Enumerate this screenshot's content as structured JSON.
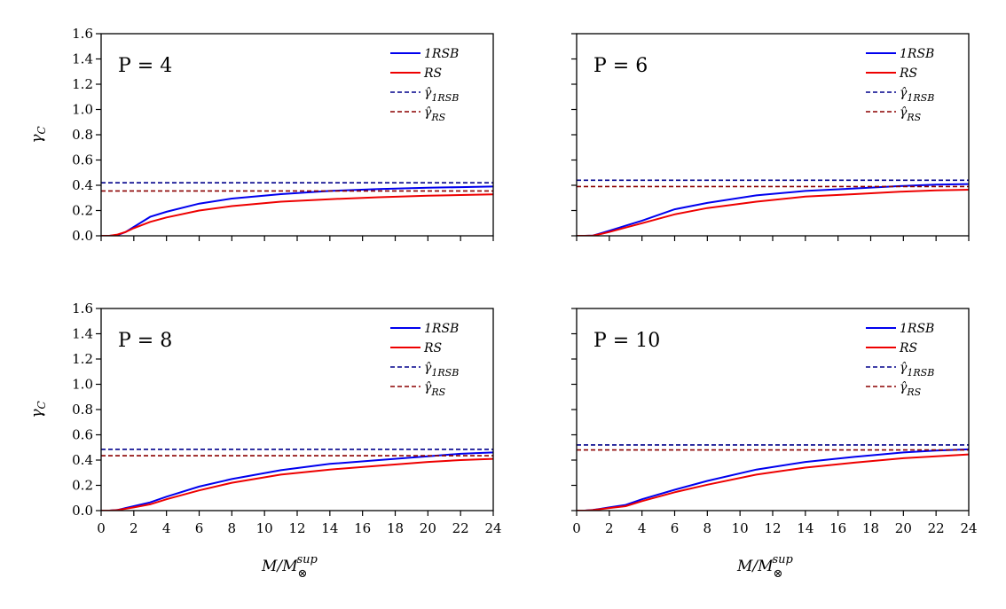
{
  "chart_data": {
    "type": "line",
    "ylabel": "γ_C",
    "xlabel": "M/M_⊗^sup",
    "xlim": [
      0,
      24
    ],
    "ylim": [
      0,
      1.6
    ],
    "xticks": [
      "0",
      "2",
      "4",
      "6",
      "8",
      "10",
      "12",
      "14",
      "16",
      "18",
      "20",
      "22",
      "24"
    ],
    "yticks": [
      "0.0",
      "0.2",
      "0.4",
      "0.6",
      "0.8",
      "1.0",
      "1.2",
      "1.4",
      "1.6"
    ],
    "legend_position": "top-right",
    "colors": {
      "rsb": "#0000ee",
      "rs": "#ee0000",
      "rsb_hat": "#00008b",
      "rs_hat": "#8b0000"
    },
    "panels": [
      {
        "label": "P = 4",
        "series": [
          {
            "name": "1RSB",
            "x": [
              0,
              0.5,
              1,
              1.5,
              2,
              3,
              4,
              6,
              8,
              11,
              14,
              17,
              20,
              22,
              24
            ],
            "y": [
              0,
              0,
              0.005,
              0.03,
              0.07,
              0.15,
              0.19,
              0.255,
              0.295,
              0.33,
              0.355,
              0.37,
              0.38,
              0.385,
              0.39
            ]
          },
          {
            "name": "RS",
            "x": [
              0,
              0.5,
              1,
              1.5,
              2,
              3,
              4,
              6,
              8,
              11,
              14,
              17,
              20,
              22,
              24
            ],
            "y": [
              0,
              0,
              0.01,
              0.03,
              0.06,
              0.11,
              0.145,
              0.2,
              0.235,
              0.27,
              0.29,
              0.305,
              0.318,
              0.323,
              0.328
            ]
          },
          {
            "name": "γ̂_1RSB",
            "hline": 0.42
          },
          {
            "name": "γ̂_RS",
            "hline": 0.355
          }
        ]
      },
      {
        "label": "P = 6",
        "series": [
          {
            "name": "1RSB",
            "x": [
              0,
              0.5,
              1,
              1.5,
              2,
              3,
              4,
              6,
              8,
              11,
              14,
              17,
              20,
              22,
              24
            ],
            "y": [
              0,
              0,
              0.002,
              0.02,
              0.04,
              0.08,
              0.12,
              0.21,
              0.26,
              0.32,
              0.355,
              0.375,
              0.395,
              0.405,
              0.41
            ]
          },
          {
            "name": "RS",
            "x": [
              0,
              0.5,
              1,
              1.5,
              2,
              3,
              4,
              6,
              8,
              11,
              14,
              17,
              20,
              22,
              24
            ],
            "y": [
              0,
              0,
              0.002,
              0.015,
              0.03,
              0.065,
              0.1,
              0.17,
              0.22,
              0.27,
              0.31,
              0.33,
              0.35,
              0.36,
              0.365
            ]
          },
          {
            "name": "γ̂_1RSB",
            "hline": 0.44
          },
          {
            "name": "γ̂_RS",
            "hline": 0.39
          }
        ]
      },
      {
        "label": "P = 8",
        "series": [
          {
            "name": "1RSB",
            "x": [
              0,
              0.5,
              1,
              1.5,
              2,
              3,
              4,
              6,
              8,
              11,
              14,
              17,
              20,
              22,
              24
            ],
            "y": [
              0,
              0,
              0.005,
              0.02,
              0.035,
              0.065,
              0.11,
              0.19,
              0.25,
              0.32,
              0.37,
              0.4,
              0.43,
              0.45,
              0.46
            ]
          },
          {
            "name": "RS",
            "x": [
              0,
              0.5,
              1,
              1.5,
              2,
              3,
              4,
              6,
              8,
              11,
              14,
              17,
              20,
              22,
              24
            ],
            "y": [
              0,
              0,
              0.004,
              0.015,
              0.025,
              0.05,
              0.09,
              0.16,
              0.22,
              0.285,
              0.325,
              0.355,
              0.385,
              0.4,
              0.41
            ]
          },
          {
            "name": "γ̂_1RSB",
            "hline": 0.485
          },
          {
            "name": "γ̂_RS",
            "hline": 0.435
          }
        ]
      },
      {
        "label": "P = 10",
        "series": [
          {
            "name": "1RSB",
            "x": [
              0,
              0.5,
              1,
              1.5,
              2,
              3,
              4,
              6,
              8,
              11,
              14,
              17,
              20,
              22,
              24
            ],
            "y": [
              0,
              0,
              0.005,
              0.015,
              0.025,
              0.045,
              0.09,
              0.165,
              0.235,
              0.325,
              0.385,
              0.425,
              0.46,
              0.475,
              0.485
            ]
          },
          {
            "name": "RS",
            "x": [
              0,
              0.5,
              1,
              1.5,
              2,
              3,
              4,
              6,
              8,
              11,
              14,
              17,
              20,
              22,
              24
            ],
            "y": [
              0,
              0,
              0.004,
              0.012,
              0.02,
              0.035,
              0.075,
              0.145,
              0.205,
              0.285,
              0.34,
              0.38,
              0.415,
              0.43,
              0.445
            ]
          },
          {
            "name": "γ̂_1RSB",
            "hline": 0.52
          },
          {
            "name": "γ̂_RS",
            "hline": 0.48
          }
        ]
      }
    ]
  }
}
